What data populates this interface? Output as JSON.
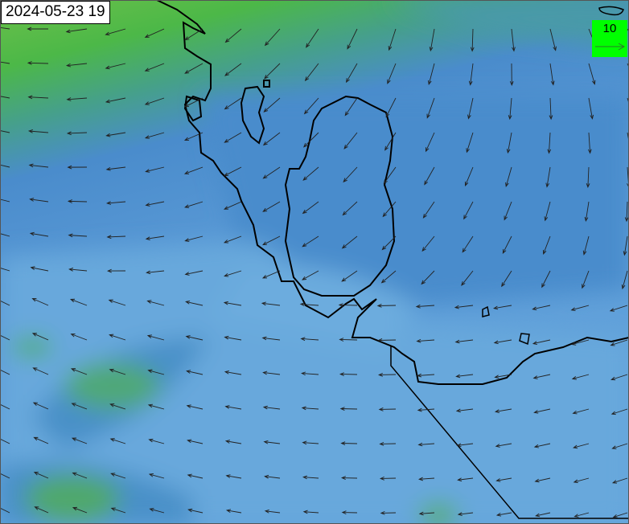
{
  "map": {
    "timestamp": "2024-05-23 19",
    "legend": {
      "reference_value": "10",
      "background_color": "#00ff00"
    },
    "field_colors": {
      "light_green": "#7cc24e",
      "green": "#4cb848",
      "teal": "#46a08a",
      "mid_blue": "#4a8ccc",
      "light_blue": "#64a4dc",
      "pale_blue": "#74b2e2"
    },
    "vector_layer": "wind-arrows",
    "coastline_color": "#000000"
  }
}
